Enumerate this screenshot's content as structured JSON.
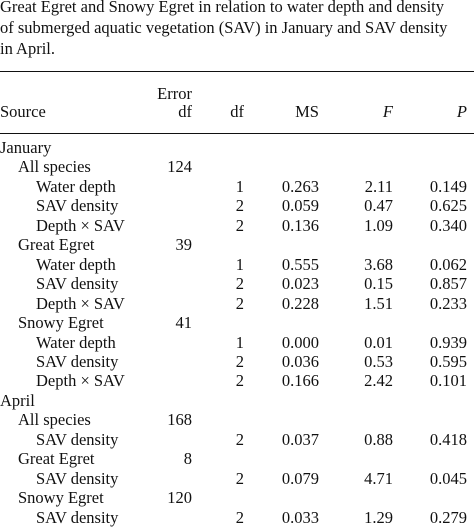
{
  "caption": {
    "lines": [
      "Great Egret and Snowy Egret in relation to water depth and density",
      "of submerged aquatic vegetation (SAV) in January and SAV density",
      "in April."
    ]
  },
  "headers": {
    "source": "Source",
    "error_df_line1": "Error",
    "error_df_line2": "df",
    "df": "df",
    "ms": "MS",
    "f": "F",
    "p": "P"
  },
  "rows": [
    {
      "label": "January",
      "level": 0,
      "error_df": "",
      "df": "",
      "ms": "",
      "f": "",
      "p": ""
    },
    {
      "label": "All species",
      "level": 1,
      "error_df": "124",
      "df": "",
      "ms": "",
      "f": "",
      "p": ""
    },
    {
      "label": "Water depth",
      "level": 2,
      "error_df": "",
      "df": "1",
      "ms": "0.263",
      "f": "2.11",
      "p": "0.149"
    },
    {
      "label": "SAV density",
      "level": 2,
      "error_df": "",
      "df": "2",
      "ms": "0.059",
      "f": "0.47",
      "p": "0.625"
    },
    {
      "label": "Depth × SAV",
      "level": 2,
      "error_df": "",
      "df": "2",
      "ms": "0.136",
      "f": "1.09",
      "p": "0.340"
    },
    {
      "label": "Great Egret",
      "level": 1,
      "error_df": "39",
      "df": "",
      "ms": "",
      "f": "",
      "p": ""
    },
    {
      "label": "Water depth",
      "level": 2,
      "error_df": "",
      "df": "1",
      "ms": "0.555",
      "f": "3.68",
      "p": "0.062"
    },
    {
      "label": "SAV density",
      "level": 2,
      "error_df": "",
      "df": "2",
      "ms": "0.023",
      "f": "0.15",
      "p": "0.857"
    },
    {
      "label": "Depth × SAV",
      "level": 2,
      "error_df": "",
      "df": "2",
      "ms": "0.228",
      "f": "1.51",
      "p": "0.233"
    },
    {
      "label": "Snowy Egret",
      "level": 1,
      "error_df": "41",
      "df": "",
      "ms": "",
      "f": "",
      "p": ""
    },
    {
      "label": "Water depth",
      "level": 2,
      "error_df": "",
      "df": "1",
      "ms": "0.000",
      "f": "0.01",
      "p": "0.939"
    },
    {
      "label": "SAV density",
      "level": 2,
      "error_df": "",
      "df": "2",
      "ms": "0.036",
      "f": "0.53",
      "p": "0.595"
    },
    {
      "label": "Depth × SAV",
      "level": 2,
      "error_df": "",
      "df": "2",
      "ms": "0.166",
      "f": "2.42",
      "p": "0.101"
    },
    {
      "label": "April",
      "level": 0,
      "error_df": "",
      "df": "",
      "ms": "",
      "f": "",
      "p": ""
    },
    {
      "label": "All species",
      "level": 1,
      "error_df": "168",
      "df": "",
      "ms": "",
      "f": "",
      "p": ""
    },
    {
      "label": "SAV density",
      "level": 2,
      "error_df": "",
      "df": "2",
      "ms": "0.037",
      "f": "0.88",
      "p": "0.418"
    },
    {
      "label": "Great Egret",
      "level": 1,
      "error_df": "8",
      "df": "",
      "ms": "",
      "f": "",
      "p": ""
    },
    {
      "label": "SAV density",
      "level": 2,
      "error_df": "",
      "df": "2",
      "ms": "0.079",
      "f": "4.71",
      "p": "0.045"
    },
    {
      "label": "Snowy Egret",
      "level": 1,
      "error_df": "120",
      "df": "",
      "ms": "",
      "f": "",
      "p": ""
    },
    {
      "label": "SAV density",
      "level": 2,
      "error_df": "",
      "df": "2",
      "ms": "0.033",
      "f": "1.29",
      "p": "0.279"
    }
  ]
}
